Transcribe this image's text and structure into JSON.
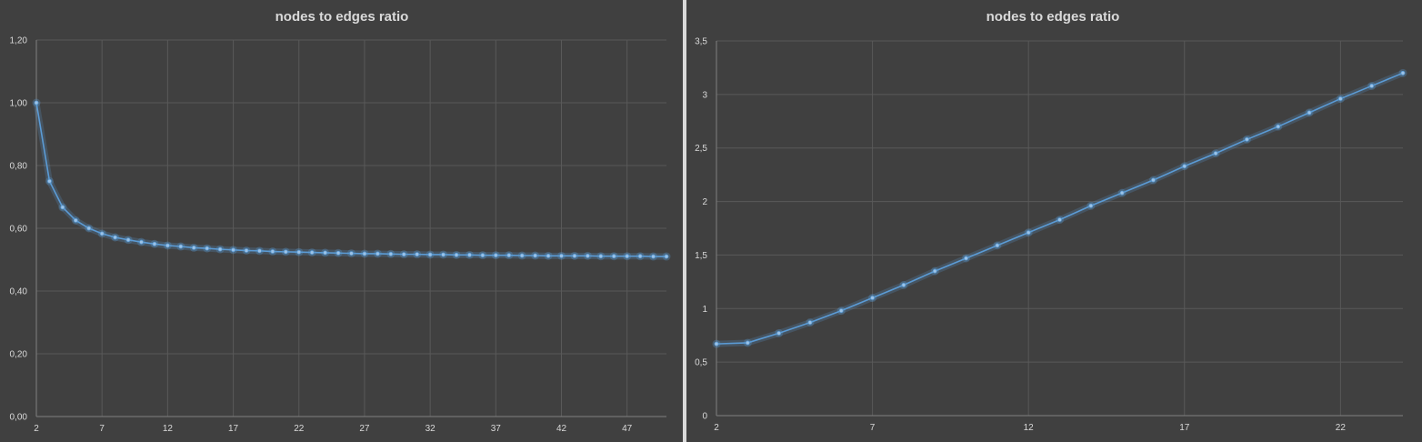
{
  "colors": {
    "background": "#404040",
    "grid": "#595959",
    "series": "#5b9bd5",
    "marker": "#9dc3e6",
    "text": "#d9d9d9"
  },
  "chart_data": [
    {
      "type": "line",
      "title": "nodes to edges ratio",
      "xlabel": "",
      "ylabel": "",
      "xlim": [
        2,
        50
      ],
      "ylim": [
        0,
        1.2
      ],
      "x_ticks": [
        "2",
        "7",
        "12",
        "17",
        "22",
        "27",
        "32",
        "37",
        "42",
        "47"
      ],
      "y_ticks": [
        "0,00",
        "0,20",
        "0,40",
        "0,60",
        "0,80",
        "1,00",
        "1,20"
      ],
      "grid": true,
      "legend": "none",
      "series": [
        {
          "x": [
            2,
            3,
            4,
            5,
            6,
            7,
            8,
            9,
            10,
            11,
            12,
            13,
            14,
            15,
            16,
            17,
            18,
            19,
            20,
            21,
            22,
            23,
            24,
            25,
            26,
            27,
            28,
            29,
            30,
            31,
            32,
            33,
            34,
            35,
            36,
            37,
            38,
            39,
            40,
            41,
            42,
            43,
            44,
            45,
            46,
            47,
            48,
            49,
            50
          ],
          "values": [
            1.0,
            0.75,
            0.667,
            0.625,
            0.6,
            0.583,
            0.571,
            0.563,
            0.556,
            0.55,
            0.545,
            0.542,
            0.538,
            0.536,
            0.533,
            0.531,
            0.529,
            0.528,
            0.526,
            0.525,
            0.524,
            0.523,
            0.522,
            0.521,
            0.52,
            0.519,
            0.519,
            0.518,
            0.517,
            0.517,
            0.516,
            0.516,
            0.515,
            0.515,
            0.514,
            0.514,
            0.514,
            0.513,
            0.513,
            0.512,
            0.512,
            0.512,
            0.512,
            0.511,
            0.511,
            0.511,
            0.511,
            0.51,
            0.51
          ]
        }
      ]
    },
    {
      "type": "line",
      "title": "nodes to edges ratio",
      "xlabel": "",
      "ylabel": "",
      "xlim": [
        2,
        24
      ],
      "ylim": [
        0,
        3.5
      ],
      "x_ticks": [
        "2",
        "7",
        "12",
        "17",
        "22"
      ],
      "y_ticks": [
        "0",
        "0,5",
        "1",
        "1,5",
        "2",
        "2,5",
        "3",
        "3,5"
      ],
      "grid": true,
      "legend": "none",
      "series": [
        {
          "x": [
            2,
            3,
            4,
            5,
            6,
            7,
            8,
            9,
            10,
            11,
            12,
            13,
            14,
            15,
            16,
            17,
            18,
            19,
            20,
            21,
            22,
            23,
            24
          ],
          "values": [
            0.67,
            0.68,
            0.77,
            0.87,
            0.98,
            1.1,
            1.22,
            1.35,
            1.47,
            1.59,
            1.71,
            1.83,
            1.96,
            2.08,
            2.2,
            2.33,
            2.45,
            2.58,
            2.7,
            2.83,
            2.96,
            3.08,
            3.2
          ]
        }
      ]
    }
  ]
}
